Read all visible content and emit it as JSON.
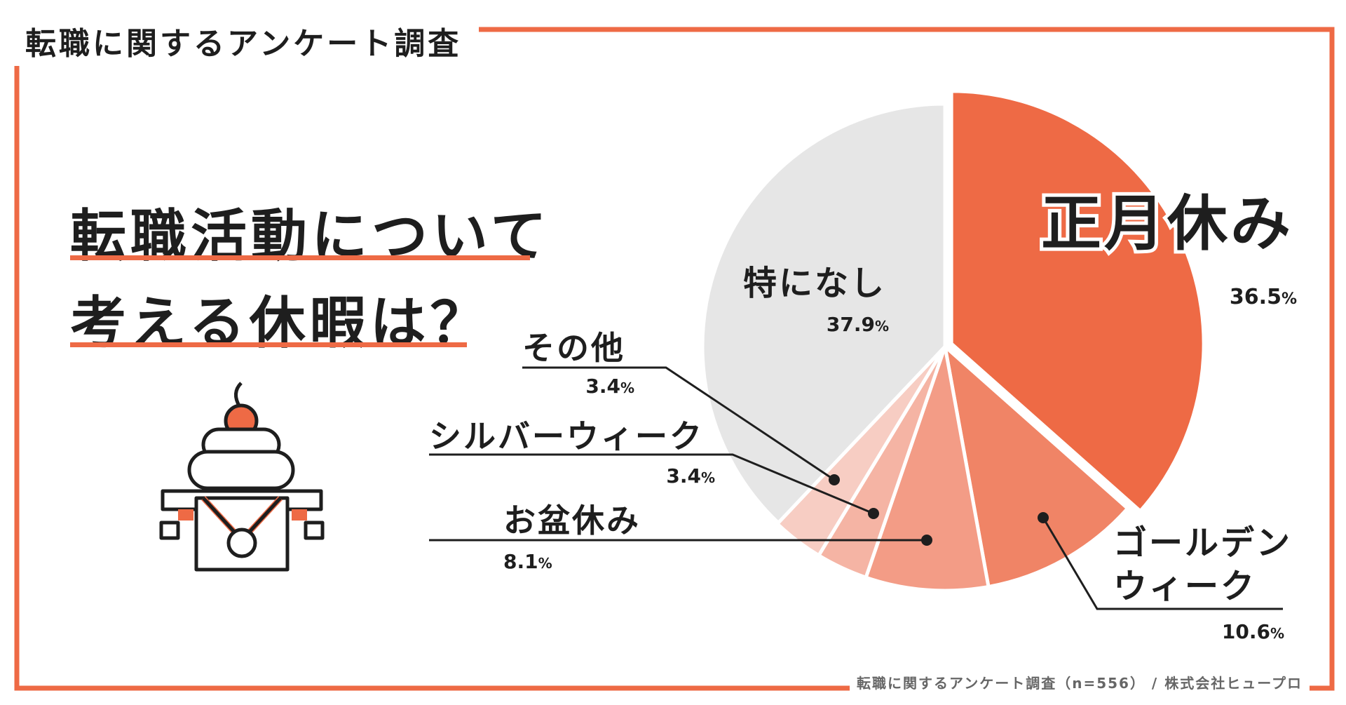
{
  "header": {
    "title": "転職に関するアンケート調査"
  },
  "question": {
    "line1": "転職活動について",
    "line2": "考える休暇は？"
  },
  "footer": {
    "text": "転職に関するアンケート調査（n=556） / 株式会社ヒュープロ"
  },
  "colors": {
    "accent": "#ee6a45",
    "frame": "#ee6a45",
    "none_slice": "#e6e6e6",
    "text": "#1e1e1e"
  },
  "illustration": {
    "icon": "kagami-mochi-icon"
  },
  "chart_data": {
    "type": "pie",
    "title": "転職活動について考える休暇は？",
    "slices": [
      {
        "label": "正月休み",
        "value": 36.5,
        "unit": "%",
        "color": "#ee6a45"
      },
      {
        "label": "ゴールデンウィーク",
        "value": 10.6,
        "unit": "%",
        "color": "#f08466"
      },
      {
        "label": "お盆休み",
        "value": 8.1,
        "unit": "%",
        "color": "#f39c86"
      },
      {
        "label": "シルバーウィーク",
        "value": 3.4,
        "unit": "%",
        "color": "#f5b4a4"
      },
      {
        "label": "その他",
        "value": 3.4,
        "unit": "%",
        "color": "#f7cdc3"
      },
      {
        "label": "特になし",
        "value": 37.9,
        "unit": "%",
        "color": "#e6e6e6"
      }
    ]
  }
}
